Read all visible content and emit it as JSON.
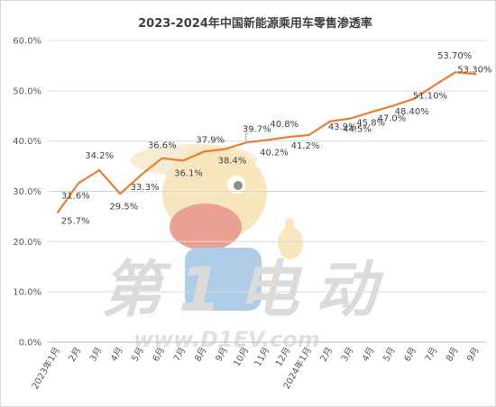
{
  "chart_data": {
    "type": "line",
    "title": "2023-2024年中国新能源乘用车零售渗透率",
    "categories": [
      "2023年1月",
      "2月",
      "3月",
      "4月",
      "5月",
      "6月",
      "7月",
      "8月",
      "9月",
      "10月",
      "11月",
      "12月",
      "2024年1月",
      "2月",
      "3月",
      "4月",
      "5月",
      "6月",
      "7月",
      "8月",
      "9月"
    ],
    "values": [
      25.7,
      31.6,
      34.2,
      29.5,
      33.3,
      36.6,
      36.1,
      37.9,
      38.4,
      39.7,
      40.2,
      40.8,
      41.2,
      43.9,
      44.5,
      45.8,
      47.0,
      48.4,
      51.1,
      53.7,
      53.3
    ],
    "data_labels": [
      "25.7%",
      "31.6%",
      "34.2%",
      "29.5%",
      "33.3%",
      "36.6%",
      "36.1%",
      "37.9%",
      "38.4%",
      "39.7%",
      "40.2%",
      "40.8%",
      "41.2%",
      "43.9%",
      "44.5%",
      "45.8%",
      "47.0%",
      "48.40%",
      "51.10%",
      "53.70%",
      "53.30%"
    ],
    "yticks": [
      "0.0%",
      "10.0%",
      "20.0%",
      "30.0%",
      "40.0%",
      "50.0%",
      "60.0%"
    ],
    "ylim": [
      0,
      60
    ],
    "grid": true,
    "legend": "none",
    "line_color": "#ED7D31",
    "watermark": {
      "brand": "第1电动",
      "url": "www.D1EV.com"
    }
  }
}
